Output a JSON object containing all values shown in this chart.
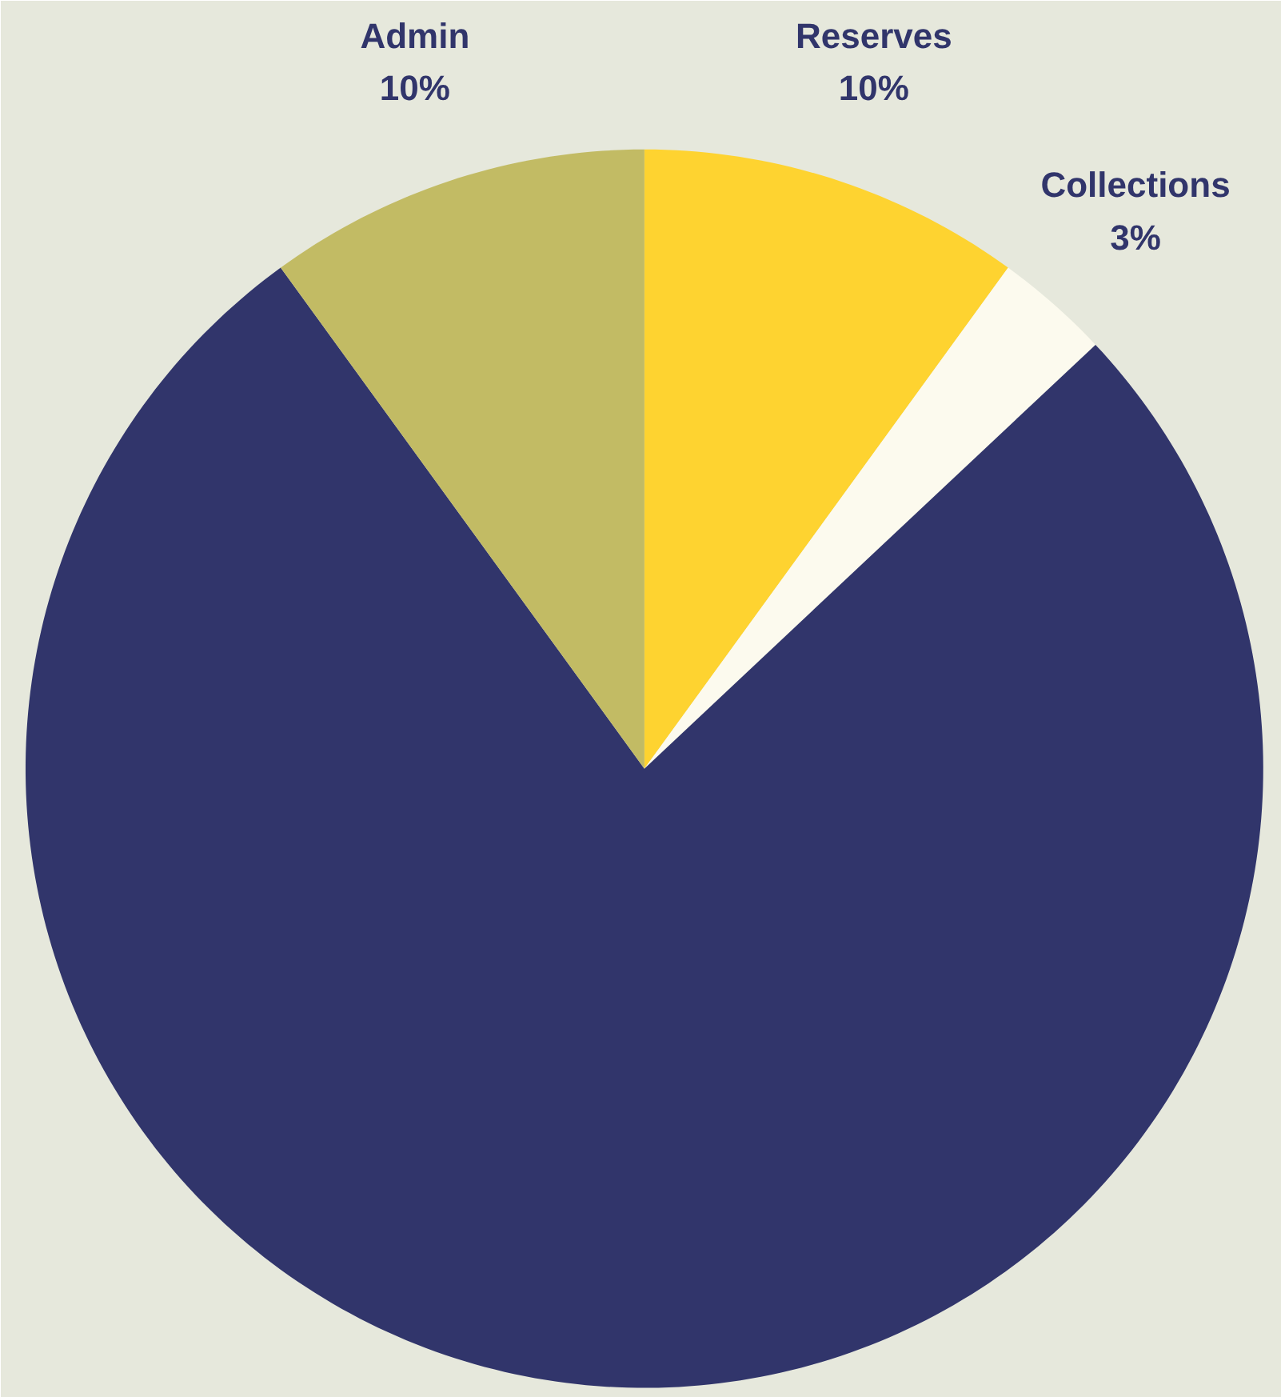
{
  "chart_data": {
    "type": "pie",
    "categories": [
      "Reserves",
      "Collections",
      null,
      "Admin"
    ],
    "values": [
      10,
      3,
      77,
      10
    ],
    "value_labels": [
      "10%",
      "3%",
      null,
      "10%"
    ],
    "colors": [
      "#fed330",
      "#fcfaee",
      "#31356b",
      "#c2bb64"
    ]
  }
}
